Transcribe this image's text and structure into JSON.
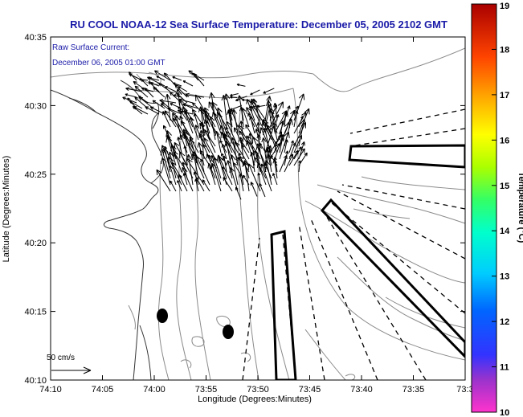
{
  "title": "RU COOL   NOAA-12  Sea Surface Temperature:  December 05, 2005 2102 GMT",
  "current_label": "Raw Surface Current:",
  "current_time": "December 06, 2005 01:00 GMT",
  "scale_label": "50 cm/s",
  "x_axis": {
    "label": "Longitude (Degrees:Minutes)",
    "ticks": [
      "74:10",
      "74:05",
      "74:00",
      "73:55",
      "73:50",
      "73:45",
      "73:40",
      "73:35",
      "73:3"
    ]
  },
  "y_axis": {
    "label": "Latitude (Degrees:Minutes)",
    "ticks": [
      "40:35",
      "40:30",
      "40:25",
      "40:20",
      "40:15",
      "40:10"
    ]
  },
  "colorbar": {
    "label": "Temperature (°C)",
    "min": 10,
    "max": 19,
    "ticks": [
      "19",
      "18",
      "17",
      "16",
      "15",
      "14",
      "13",
      "12",
      "11",
      "10"
    ]
  },
  "colors": {
    "title": "#1a1aa8",
    "contour": "#8a8a8a",
    "coast": "#333333"
  }
}
